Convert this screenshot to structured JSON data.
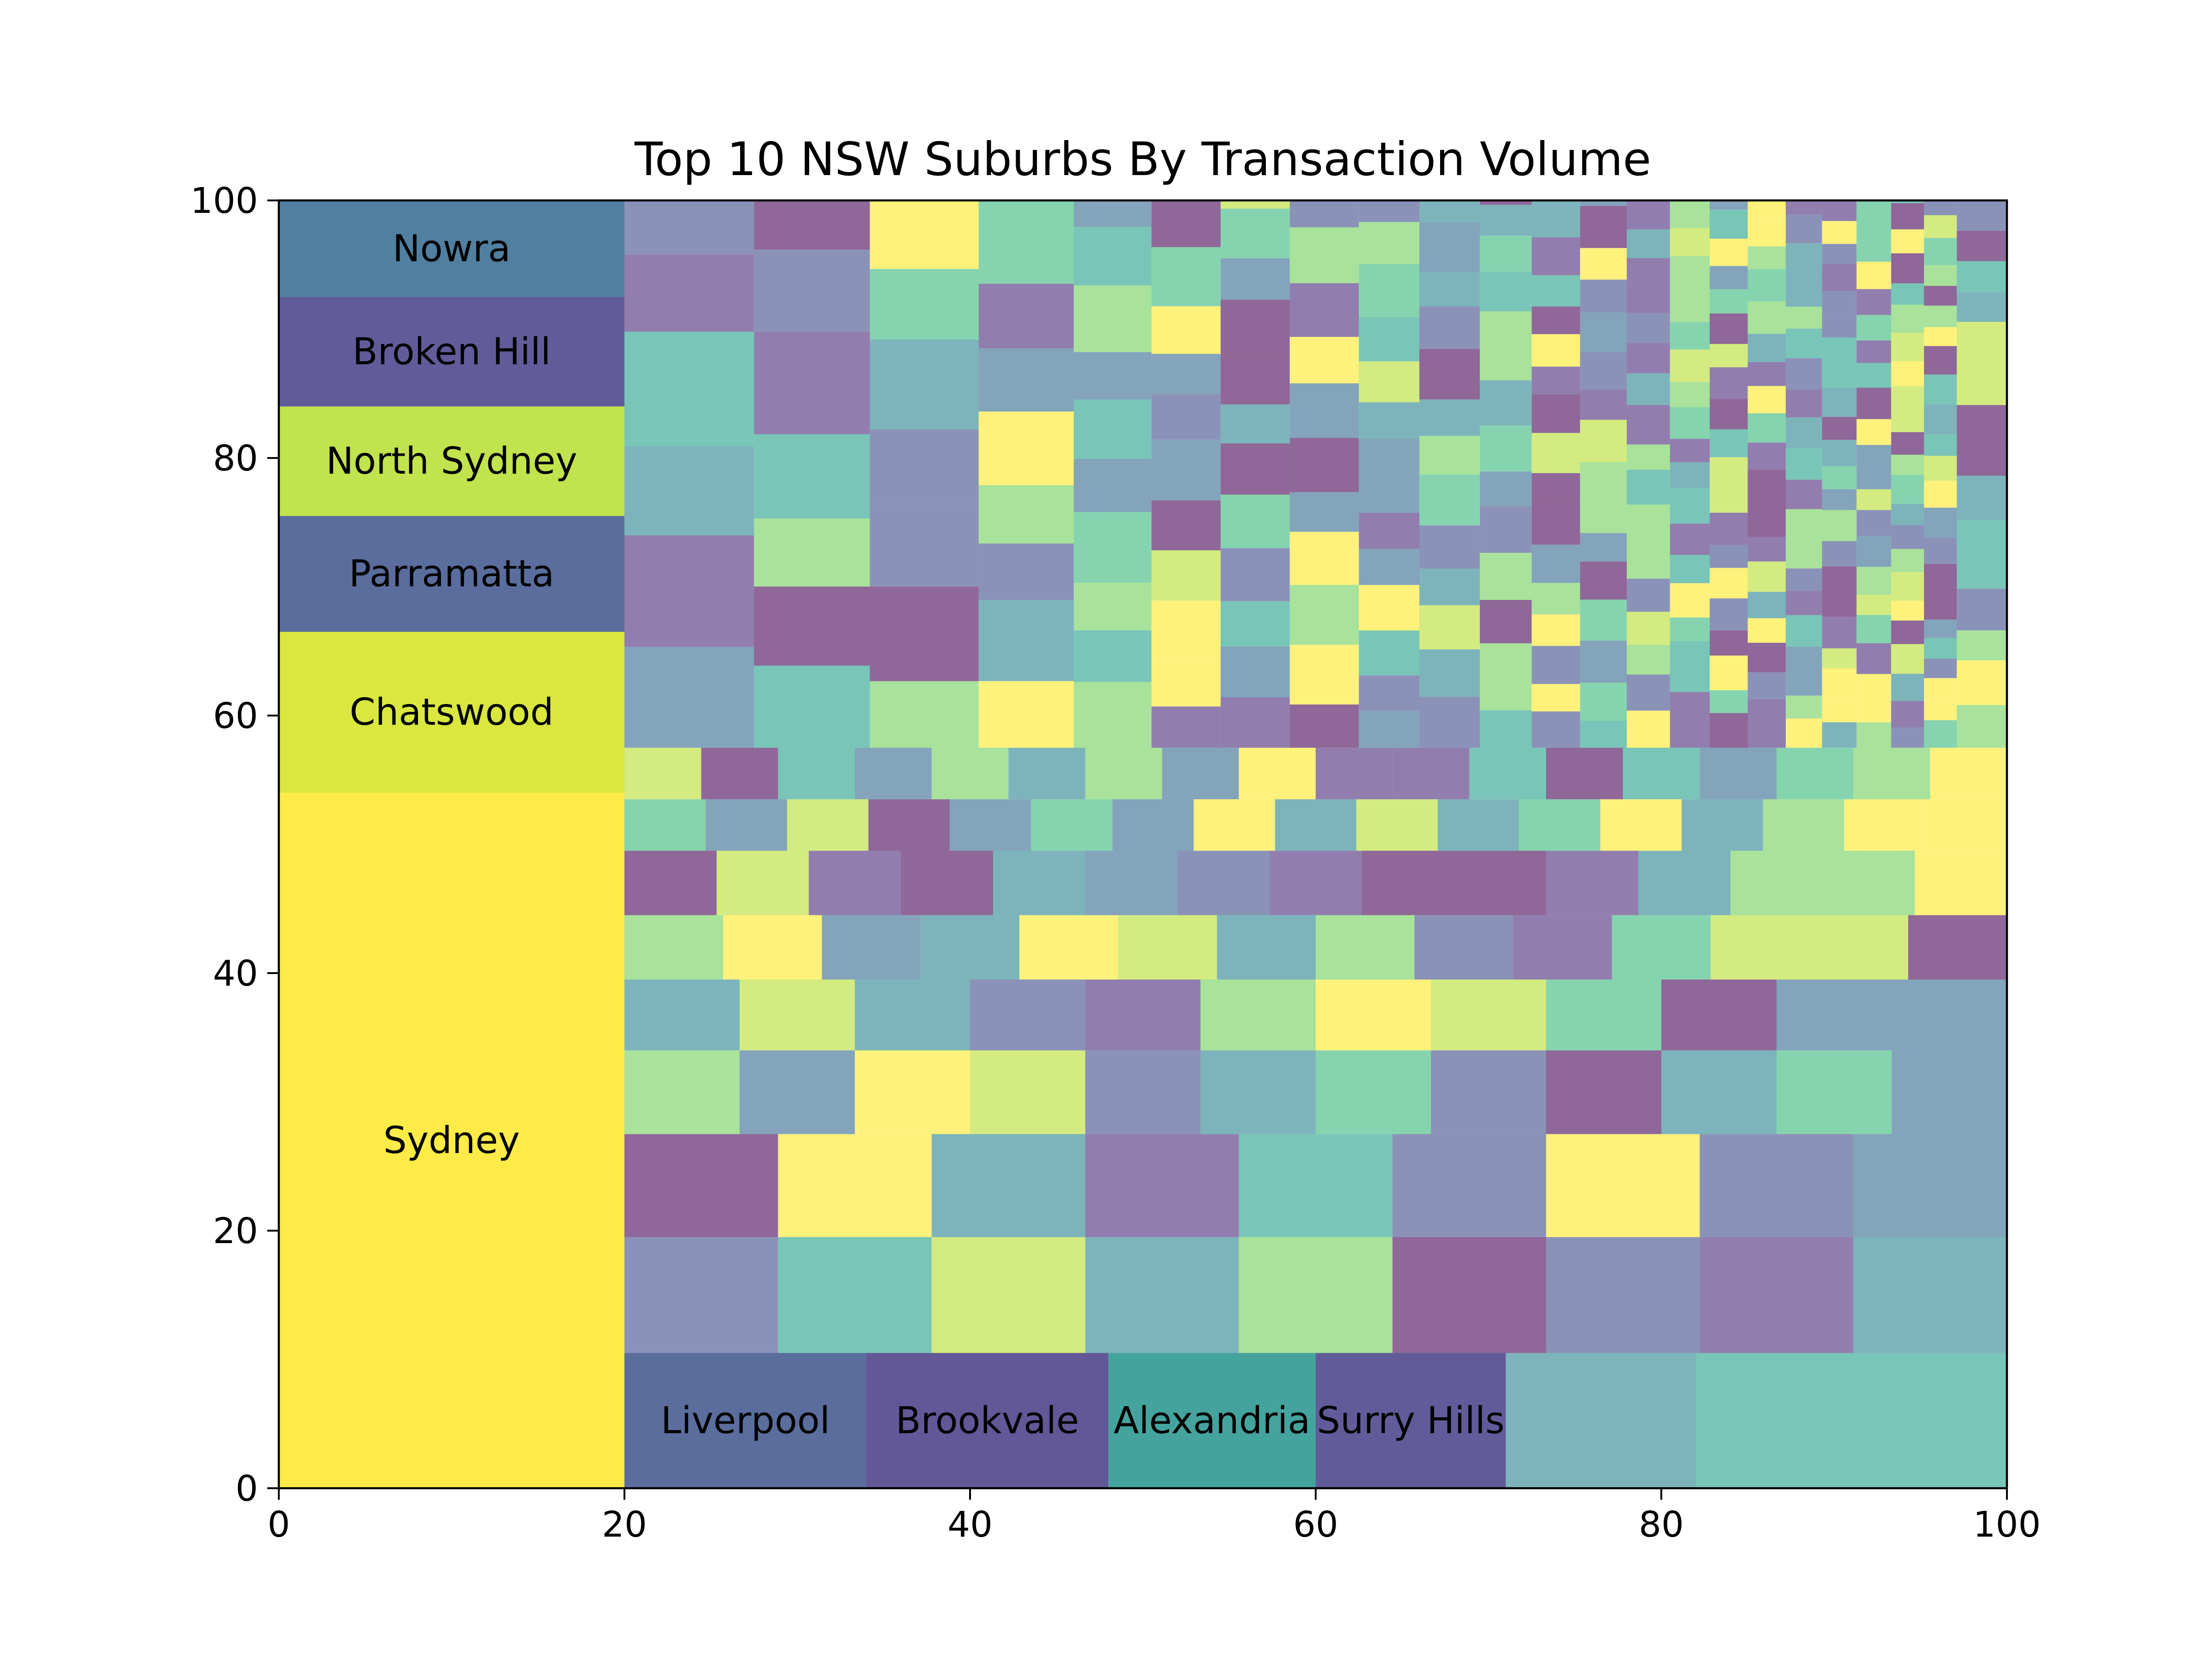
{
  "chart_data": {
    "type": "treemap",
    "title": "Top 10 NSW Suburbs By Transaction Volume",
    "xlim": [
      0,
      100
    ],
    "ylim": [
      0,
      100
    ],
    "xticks": [
      "0",
      "20",
      "40",
      "60",
      "80",
      "100"
    ],
    "yticks": [
      "0",
      "20",
      "40",
      "60",
      "80",
      "100"
    ],
    "grid": false,
    "alpha": 0.6,
    "labeled_tiles": [
      {
        "label": "Sydney",
        "x": 0,
        "y": 0,
        "w": 20,
        "h": 54,
        "color": "#fde725"
      },
      {
        "label": "Chatswood",
        "x": 0,
        "y": 54,
        "w": 20,
        "h": 12.5,
        "color": "#d2e21b"
      },
      {
        "label": "Parramatta",
        "x": 0,
        "y": 66.5,
        "w": 20,
        "h": 9,
        "color": "#3b528b"
      },
      {
        "label": "North Sydney",
        "x": 0,
        "y": 75.5,
        "w": 20,
        "h": 8.5,
        "color": "#b5de2b"
      },
      {
        "label": "Broken Hill",
        "x": 0,
        "y": 84,
        "w": 20,
        "h": 8.5,
        "color": "#433e85"
      },
      {
        "label": "Nowra",
        "x": 0,
        "y": 92.5,
        "w": 20,
        "h": 7.5,
        "color": "#31688e"
      },
      {
        "label": "Liverpool",
        "x": 20,
        "y": 0,
        "w": 14,
        "h": 10.5,
        "color": "#3b528b"
      },
      {
        "label": "Brookvale",
        "x": 34,
        "y": 0,
        "w": 14,
        "h": 10.5,
        "color": "#443983"
      },
      {
        "label": "Alexandria",
        "x": 48,
        "y": 0,
        "w": 12,
        "h": 10.5,
        "color": "#21918c"
      },
      {
        "label": "Surry Hills",
        "x": 60,
        "y": 0,
        "w": 11,
        "h": 10.5,
        "color": "#433e85"
      }
    ],
    "unlabeled_tile_count_note": "",
    "palette": [
      "#440154",
      "#482878",
      "#3e4a89",
      "#31688e",
      "#26828e",
      "#1f9e89",
      "#35b779",
      "#6ece58",
      "#b5de2b",
      "#fde725"
    ]
  }
}
